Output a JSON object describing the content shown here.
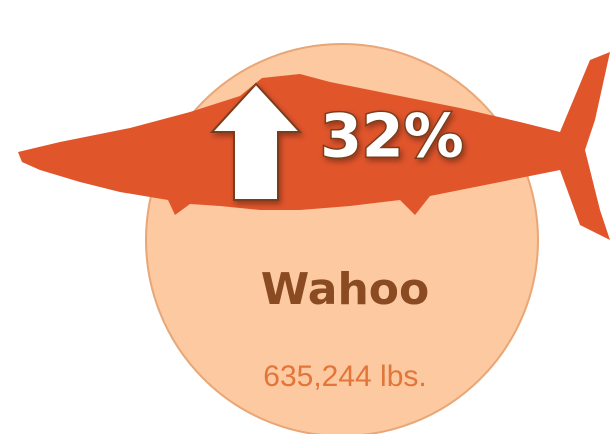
{
  "badge": {
    "change": "32%",
    "species": "Wahoo",
    "weight": "635,244 lbs."
  }
}
